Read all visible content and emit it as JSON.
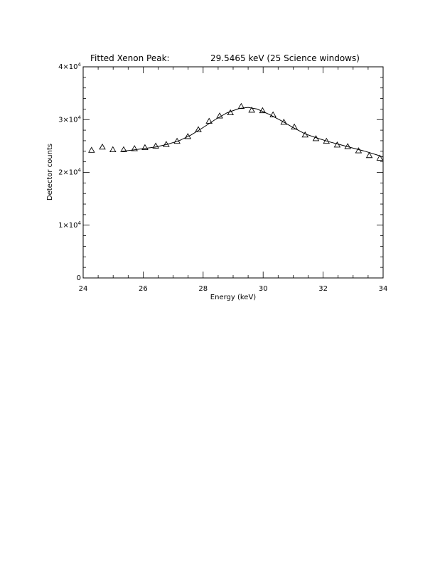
{
  "chart_data": {
    "type": "scatter",
    "title_left": "Fitted Xenon Peak:",
    "title_right": "29.5465 keV (25 Science windows)",
    "xlabel": "Energy (keV)",
    "ylabel": "Detector counts",
    "xlim": [
      24,
      34
    ],
    "ylim": [
      0,
      40000
    ],
    "x_ticks": [
      24,
      26,
      28,
      30,
      32,
      34
    ],
    "x_tick_labels": [
      "24",
      "26",
      "28",
      "30",
      "32",
      "34"
    ],
    "y_ticks": [
      0,
      10000,
      20000,
      30000,
      40000
    ],
    "y_tick_labels": [
      {
        "mantissa": "0",
        "exp": ""
      },
      {
        "mantissa": "1×10",
        "exp": "4"
      },
      {
        "mantissa": "2×10",
        "exp": "4"
      },
      {
        "mantissa": "3×10",
        "exp": "4"
      },
      {
        "mantissa": "4×10",
        "exp": "4"
      }
    ],
    "grid": false,
    "series": [
      {
        "kind": "points",
        "marker": "triangle-open",
        "x": [
          24.28,
          24.64,
          24.99,
          25.35,
          25.71,
          26.06,
          26.42,
          26.77,
          27.13,
          27.49,
          27.84,
          28.2,
          28.55,
          28.91,
          29.27,
          29.62,
          29.98,
          30.33,
          30.69,
          31.04,
          31.4,
          31.76,
          32.11,
          32.47,
          32.82,
          33.18,
          33.54,
          33.89
        ],
        "y": [
          24200,
          24800,
          24300,
          24300,
          24500,
          24700,
          25000,
          25300,
          25900,
          26800,
          28100,
          29700,
          30700,
          31300,
          32500,
          31800,
          31700,
          30900,
          29500,
          28600,
          27100,
          26400,
          25900,
          25200,
          24900,
          24100,
          23200,
          22700
        ]
      },
      {
        "kind": "fit",
        "x": [
          25.3,
          25.6,
          26.0,
          26.4,
          26.8,
          27.2,
          27.6,
          28.0,
          28.4,
          28.8,
          29.2,
          29.5,
          29.8,
          30.2,
          30.6,
          31.0,
          31.4,
          31.8,
          32.2,
          32.6,
          33.0,
          33.4,
          33.8,
          34.0
        ],
        "y": [
          24000,
          24200,
          24500,
          24800,
          25300,
          26000,
          27100,
          28500,
          30000,
          31300,
          32100,
          32300,
          32000,
          31000,
          29800,
          28500,
          27300,
          26500,
          25800,
          25200,
          24600,
          24000,
          23300,
          22900
        ]
      }
    ]
  }
}
